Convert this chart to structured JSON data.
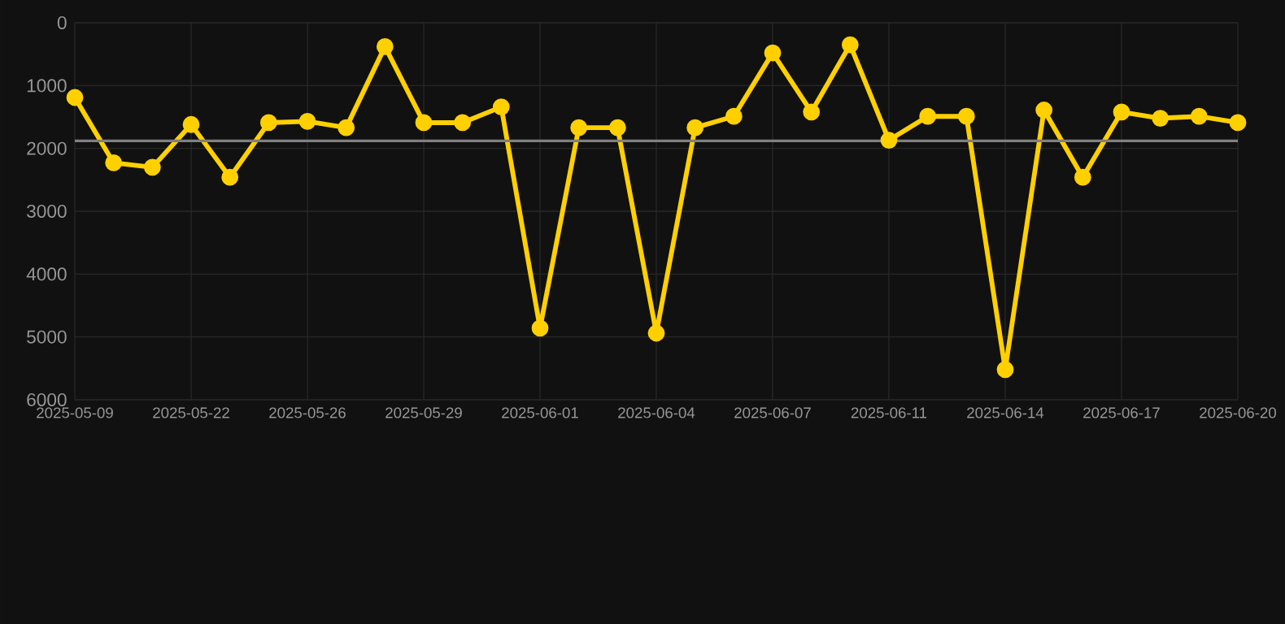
{
  "chart_data": {
    "type": "line",
    "categories": [
      "2025-05-09",
      null,
      null,
      "2025-05-22",
      null,
      null,
      "2025-05-26",
      null,
      null,
      "2025-05-29",
      null,
      null,
      "2025-06-01",
      null,
      null,
      "2025-06-04",
      null,
      null,
      "2025-06-07",
      null,
      null,
      "2025-06-11",
      null,
      null,
      "2025-06-14",
      null,
      null,
      "2025-06-17",
      null,
      null,
      "2025-06-20"
    ],
    "series": [
      {
        "color": "#ffd000",
        "marker": "circle",
        "values": [
          1190,
          2230,
          2300,
          1620,
          2460,
          1590,
          1570,
          1670,
          380,
          1590,
          1590,
          1340,
          4860,
          1670,
          1670,
          4940,
          1670,
          1490,
          480,
          1420,
          350,
          1870,
          1490,
          1490,
          5520,
          1390,
          2460,
          1420,
          1520,
          1490,
          1590
        ]
      }
    ],
    "ref_lines": [
      {
        "axis": "y",
        "value": 1880,
        "color": "#808080"
      }
    ],
    "ylim": [
      6000,
      0
    ],
    "yticks": [
      0,
      1000,
      2000,
      3000,
      4000,
      5000,
      6000
    ],
    "grid": true,
    "line_style": "solid"
  }
}
